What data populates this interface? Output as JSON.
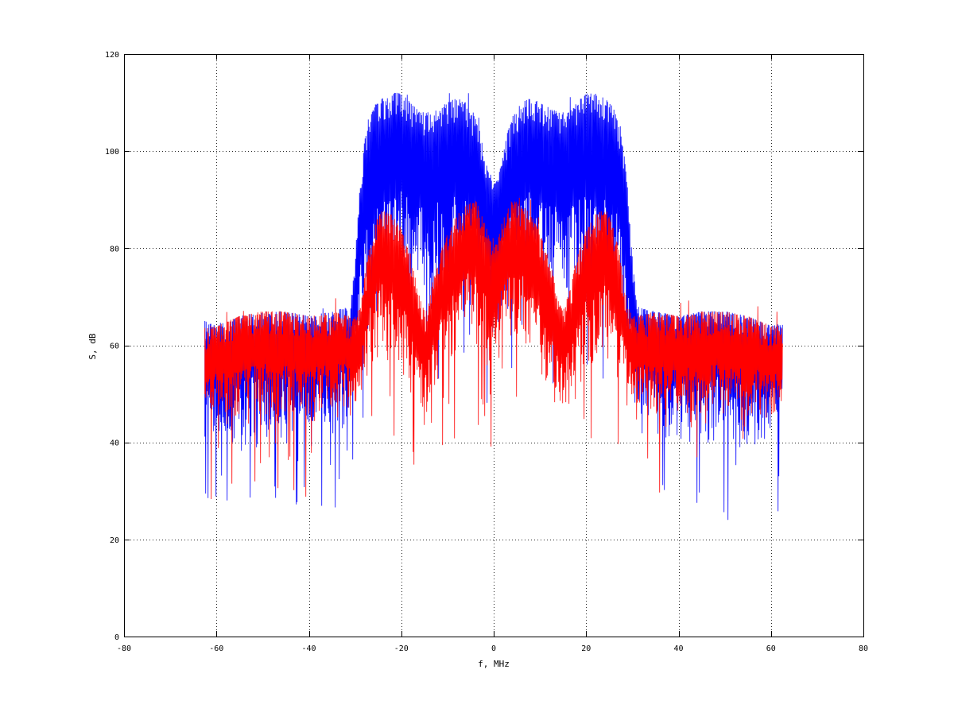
{
  "chart_data": {
    "type": "line",
    "xlabel": "f, MHz",
    "ylabel": "S, dB",
    "xlim": [
      -80,
      80
    ],
    "ylim": [
      0,
      120
    ],
    "xticks": [
      -80,
      -60,
      -40,
      -20,
      0,
      20,
      40,
      60,
      80
    ],
    "yticks": [
      0,
      20,
      40,
      60,
      80,
      100,
      120
    ],
    "xtick_labels": [
      "-80",
      "-60",
      "-40",
      "-20",
      "0",
      "20",
      "40",
      "60",
      "80"
    ],
    "ytick_labels": [
      "0",
      "20",
      "40",
      "60",
      "80",
      "100",
      "120"
    ],
    "grid": true,
    "series": [
      {
        "color": "#0000ff",
        "x": [
          -62.5,
          -60,
          -55,
          -50,
          -45,
          -40,
          -35,
          -31,
          -30,
          -29,
          -28,
          -27,
          -26,
          -25,
          -24,
          -22,
          -20,
          -18,
          -16,
          -14,
          -12,
          -10,
          -8,
          -6,
          -4,
          -3,
          -2,
          -1,
          0,
          1,
          2,
          3,
          4,
          6,
          8,
          10,
          12,
          14,
          16,
          18,
          20,
          22,
          24,
          25,
          26,
          27,
          28,
          29,
          30,
          31,
          35,
          40,
          45,
          50,
          55,
          60,
          62.5
        ],
        "upper": [
          65,
          64,
          66,
          67,
          67,
          66,
          67,
          68,
          78,
          92,
          102,
          106,
          109,
          110,
          111,
          112,
          112,
          110,
          108,
          108,
          109,
          110,
          111,
          110,
          107,
          104,
          99,
          95,
          93,
          95,
          99,
          104,
          107,
          110,
          111,
          110,
          109,
          108,
          108,
          110,
          112,
          112,
          111,
          110,
          109,
          106,
          102,
          92,
          78,
          68,
          67,
          66,
          67,
          67,
          66,
          64,
          65
        ],
        "lower": [
          40,
          38,
          37,
          38,
          38,
          38,
          39,
          41,
          47,
          55,
          60,
          62,
          64,
          65,
          65,
          66,
          67,
          66,
          65,
          65,
          66,
          67,
          68,
          67,
          66,
          64,
          62,
          60,
          59,
          60,
          62,
          64,
          66,
          67,
          68,
          67,
          66,
          65,
          65,
          66,
          67,
          66,
          65,
          65,
          64,
          62,
          60,
          55,
          47,
          41,
          39,
          38,
          38,
          38,
          37,
          38,
          40
        ]
      },
      {
        "color": "#ff0000",
        "x": [
          -62.5,
          -60,
          -55,
          -50,
          -45,
          -40,
          -35,
          -31,
          -30,
          -29,
          -28,
          -27,
          -26,
          -25,
          -24,
          -22,
          -20,
          -18,
          -16,
          -15,
          -14,
          -13,
          -12,
          -10,
          -8,
          -6,
          -4,
          -3,
          -2,
          -1,
          0,
          1,
          2,
          3,
          4,
          6,
          8,
          10,
          12,
          13,
          14,
          15,
          16,
          18,
          20,
          22,
          24,
          25,
          26,
          27,
          28,
          29,
          30,
          31,
          35,
          40,
          45,
          50,
          55,
          60,
          62.5
        ],
        "upper": [
          64,
          64,
          66,
          67,
          67,
          66,
          67,
          66,
          66,
          68,
          74,
          80,
          84,
          87,
          88,
          87,
          84,
          78,
          70,
          67,
          69,
          74,
          78,
          83,
          87,
          89,
          90,
          88,
          86,
          82,
          80,
          82,
          86,
          88,
          90,
          89,
          87,
          83,
          78,
          74,
          69,
          67,
          70,
          78,
          84,
          87,
          88,
          87,
          84,
          80,
          74,
          68,
          66,
          66,
          67,
          66,
          67,
          67,
          66,
          64,
          64
        ],
        "lower": [
          42,
          42,
          43,
          43,
          42,
          42,
          43,
          44,
          45,
          47,
          50,
          52,
          53,
          54,
          54,
          53,
          52,
          48,
          45,
          44,
          45,
          47,
          49,
          52,
          55,
          57,
          58,
          57,
          56,
          54,
          52,
          54,
          56,
          57,
          58,
          57,
          55,
          52,
          49,
          47,
          45,
          44,
          45,
          48,
          52,
          53,
          54,
          54,
          53,
          52,
          50,
          47,
          45,
          44,
          43,
          42,
          42,
          43,
          43,
          42,
          42
        ]
      }
    ]
  }
}
